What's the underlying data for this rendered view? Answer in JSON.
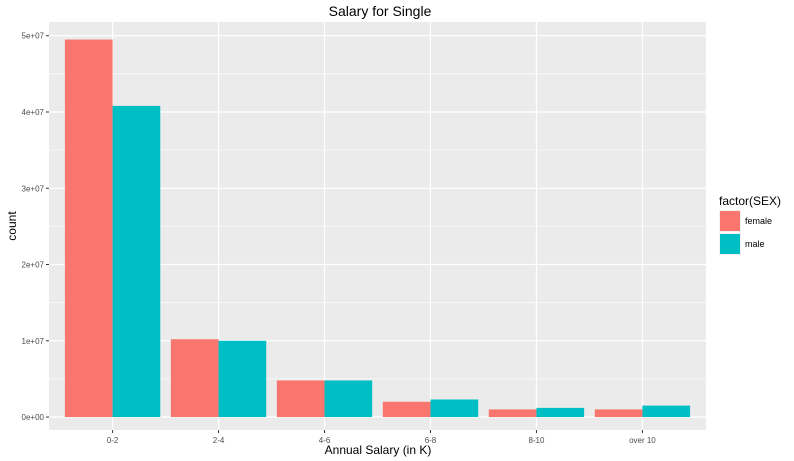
{
  "chart_data": {
    "type": "bar",
    "title": "Salary for Single",
    "xlabel": "Annual Salary (in K)",
    "ylabel": "count",
    "categories": [
      "0-2",
      "2-4",
      "4-6",
      "6-8",
      "8-10",
      "over 10"
    ],
    "series": [
      {
        "name": "female",
        "color": "#F8766D",
        "values": [
          49500000,
          10200000,
          4800000,
          2000000,
          1000000,
          1000000
        ]
      },
      {
        "name": "male",
        "color": "#00BFC4",
        "values": [
          40800000,
          10000000,
          4800000,
          2300000,
          1200000,
          1500000
        ]
      }
    ],
    "ylim": [
      -1700000,
      51800000
    ],
    "yticks": [
      0,
      10000000,
      20000000,
      30000000,
      40000000,
      50000000
    ],
    "ytick_labels": [
      "0e+00",
      "1e+07",
      "2e+07",
      "3e+07",
      "4e+07",
      "5e+07"
    ],
    "grid": true,
    "legend": {
      "title": "factor(SEX)",
      "position": "right"
    },
    "panel_background": "#EBEBEB"
  }
}
